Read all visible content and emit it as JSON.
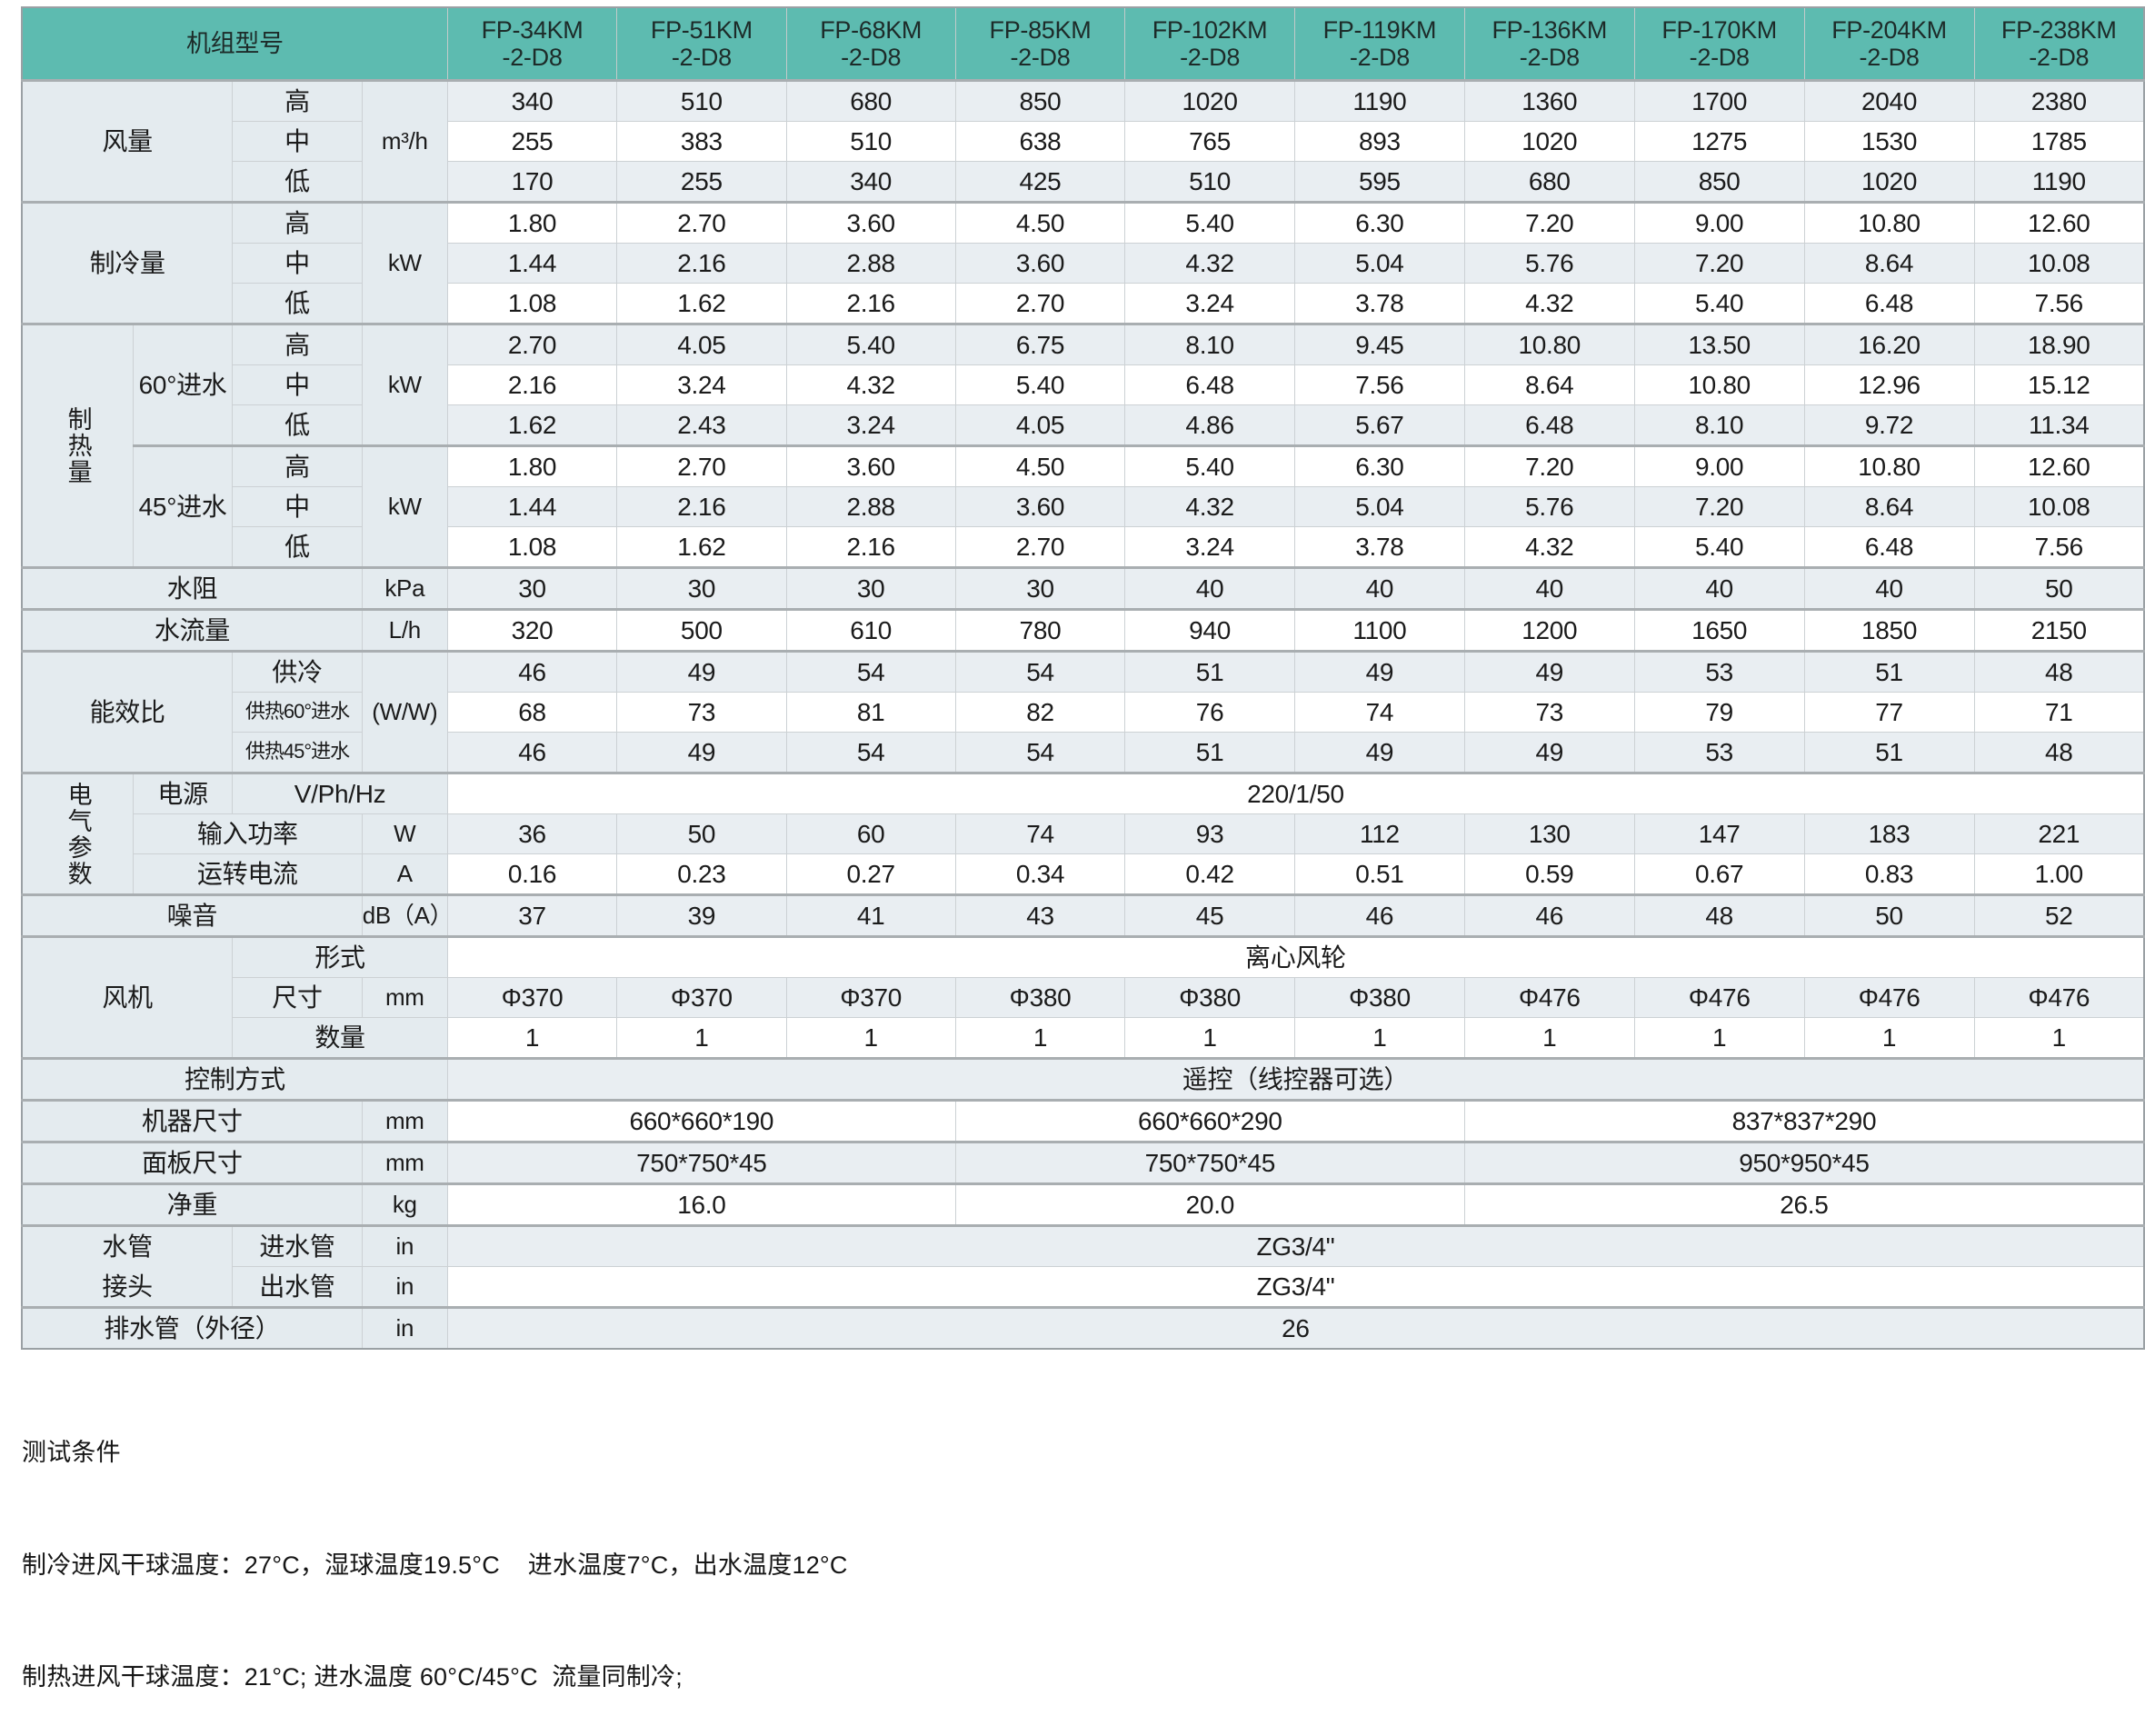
{
  "colors": {
    "header_teal": "#5dbbb0",
    "row_light": "#e9eef2",
    "row_white": "#ffffff",
    "label_bg": "#e4ebef",
    "border": "#ccd1d4",
    "section_border": "#a9aeb1",
    "text": "#1b1b1b"
  },
  "table": {
    "rows": [
      [
        {
          "t": "机组型号",
          "cs": 4,
          "c": "h"
        },
        {
          "t": "FP-34KM\n-2-D8",
          "c": "h"
        },
        {
          "t": "FP-51KM\n-2-D8",
          "c": "h"
        },
        {
          "t": "FP-68KM\n-2-D8",
          "c": "h"
        },
        {
          "t": "FP-85KM\n-2-D8",
          "c": "h"
        },
        {
          "t": "FP-102KM\n-2-D8",
          "c": "h"
        },
        {
          "t": "FP-119KM\n-2-D8",
          "c": "h"
        },
        {
          "t": "FP-136KM\n-2-D8",
          "c": "h"
        },
        {
          "t": "FP-170KM\n-2-D8",
          "c": "h"
        },
        {
          "t": "FP-204KM\n-2-D8",
          "c": "h"
        },
        {
          "t": "FP-238KM\n-2-D8",
          "c": "h"
        }
      ],
      [
        {
          "t": "风量",
          "cs": 2,
          "rs": 3,
          "c": "l"
        },
        {
          "t": "高",
          "c": "l"
        },
        {
          "t": "m³/h",
          "rs": 3,
          "c": "u"
        },
        "340",
        "510",
        "680",
        "850",
        "1020",
        "1190",
        "1360",
        "1700",
        "2040",
        "2380"
      ],
      [
        {
          "t": "中",
          "c": "l"
        },
        "255",
        "383",
        "510",
        "638",
        "765",
        "893",
        "1020",
        "1275",
        "1530",
        "1785"
      ],
      [
        {
          "t": "低",
          "c": "l"
        },
        "170",
        "255",
        "340",
        "425",
        "510",
        "595",
        "680",
        "850",
        "1020",
        "1190"
      ],
      [
        {
          "t": "制冷量",
          "cs": 2,
          "rs": 3,
          "c": "l"
        },
        {
          "t": "高",
          "c": "l"
        },
        {
          "t": "kW",
          "rs": 3,
          "c": "u"
        },
        "1.80",
        "2.70",
        "3.60",
        "4.50",
        "5.40",
        "6.30",
        "7.20",
        "9.00",
        "10.80",
        "12.60"
      ],
      [
        {
          "t": "中",
          "c": "l"
        },
        "1.44",
        "2.16",
        "2.88",
        "3.60",
        "4.32",
        "5.04",
        "5.76",
        "7.20",
        "8.64",
        "10.08"
      ],
      [
        {
          "t": "低",
          "c": "l"
        },
        "1.08",
        "1.62",
        "2.16",
        "2.70",
        "3.24",
        "3.78",
        "4.32",
        "5.40",
        "6.48",
        "7.56"
      ],
      [
        {
          "t": "制热量",
          "rs": 6,
          "c": "v"
        },
        {
          "t": "60°进水",
          "rs": 3,
          "c": "l"
        },
        {
          "t": "高",
          "c": "l"
        },
        {
          "t": "kW",
          "rs": 3,
          "c": "u"
        },
        "2.70",
        "4.05",
        "5.40",
        "6.75",
        "8.10",
        "9.45",
        "10.80",
        "13.50",
        "16.20",
        "18.90"
      ],
      [
        {
          "t": "中",
          "c": "l"
        },
        "2.16",
        "3.24",
        "4.32",
        "5.40",
        "6.48",
        "7.56",
        "8.64",
        "10.80",
        "12.96",
        "15.12"
      ],
      [
        {
          "t": "低",
          "c": "l"
        },
        "1.62",
        "2.43",
        "3.24",
        "4.05",
        "4.86",
        "5.67",
        "6.48",
        "8.10",
        "9.72",
        "11.34"
      ],
      [
        {
          "t": "45°进水",
          "rs": 3,
          "c": "l"
        },
        {
          "t": "高",
          "c": "l"
        },
        {
          "t": "kW",
          "rs": 3,
          "c": "u"
        },
        "1.80",
        "2.70",
        "3.60",
        "4.50",
        "5.40",
        "6.30",
        "7.20",
        "9.00",
        "10.80",
        "12.60"
      ],
      [
        {
          "t": "中",
          "c": "l"
        },
        "1.44",
        "2.16",
        "2.88",
        "3.60",
        "4.32",
        "5.04",
        "5.76",
        "7.20",
        "8.64",
        "10.08"
      ],
      [
        {
          "t": "低",
          "c": "l"
        },
        "1.08",
        "1.62",
        "2.16",
        "2.70",
        "3.24",
        "3.78",
        "4.32",
        "5.40",
        "6.48",
        "7.56"
      ],
      [
        {
          "t": "水阻",
          "cs": 3,
          "c": "l"
        },
        {
          "t": "kPa",
          "c": "u"
        },
        "30",
        "30",
        "30",
        "30",
        "40",
        "40",
        "40",
        "40",
        "40",
        "50"
      ],
      [
        {
          "t": "水流量",
          "cs": 3,
          "c": "l"
        },
        {
          "t": "L/h",
          "c": "u"
        },
        "320",
        "500",
        "610",
        "780",
        "940",
        "1100",
        "1200",
        "1650",
        "1850",
        "2150"
      ],
      [
        {
          "t": "能效比",
          "cs": 2,
          "rs": 3,
          "c": "l"
        },
        {
          "t": "供冷",
          "c": "l"
        },
        {
          "t": "(W/W)",
          "rs": 3,
          "c": "u"
        },
        "46",
        "49",
        "54",
        "54",
        "51",
        "49",
        "49",
        "53",
        "51",
        "48"
      ],
      [
        {
          "t": "供热60°进水",
          "c": "s"
        },
        "68",
        "73",
        "81",
        "82",
        "76",
        "74",
        "73",
        "79",
        "77",
        "71"
      ],
      [
        {
          "t": "供热45°进水",
          "c": "s"
        },
        "46",
        "49",
        "54",
        "54",
        "51",
        "49",
        "49",
        "53",
        "51",
        "48"
      ],
      [
        {
          "t": "电气参数",
          "rs": 3,
          "c": "v"
        },
        {
          "t": "电源",
          "c": "l"
        },
        {
          "t": "V/Ph/Hz",
          "cs": 2,
          "c": "l"
        },
        {
          "t": "220/1/50",
          "cs": 10
        }
      ],
      [
        {
          "t": "输入功率",
          "cs": 2,
          "c": "l"
        },
        {
          "t": "W",
          "c": "u"
        },
        "36",
        "50",
        "60",
        "74",
        "93",
        "112",
        "130",
        "147",
        "183",
        "221"
      ],
      [
        {
          "t": "运转电流",
          "cs": 2,
          "c": "l"
        },
        {
          "t": "A",
          "c": "u"
        },
        "0.16",
        "0.23",
        "0.27",
        "0.34",
        "0.42",
        "0.51",
        "0.59",
        "0.67",
        "0.83",
        "1.00"
      ],
      [
        {
          "t": "噪音",
          "cs": 3,
          "c": "l"
        },
        {
          "t": "dB（A）",
          "c": "u"
        },
        "37",
        "39",
        "41",
        "43",
        "45",
        "46",
        "46",
        "48",
        "50",
        "52"
      ],
      [
        {
          "t": "风机",
          "cs": 2,
          "rs": 3,
          "c": "l"
        },
        {
          "t": "形式",
          "cs": 2,
          "c": "l"
        },
        {
          "t": "离心风轮",
          "cs": 10
        }
      ],
      [
        {
          "t": "尺寸",
          "c": "l"
        },
        {
          "t": "mm",
          "c": "u"
        },
        "Φ370",
        "Φ370",
        "Φ370",
        "Φ380",
        "Φ380",
        "Φ380",
        "Φ476",
        "Φ476",
        "Φ476",
        "Φ476"
      ],
      [
        {
          "t": "数量",
          "cs": 2,
          "c": "l"
        },
        "1",
        "1",
        "1",
        "1",
        "1",
        "1",
        "1",
        "1",
        "1",
        "1"
      ],
      [
        {
          "t": "控制方式",
          "cs": 4,
          "c": "l"
        },
        {
          "t": "遥控（线控器可选）",
          "cs": 10
        }
      ],
      [
        {
          "t": "机器尺寸",
          "cs": 3,
          "c": "l"
        },
        {
          "t": "mm",
          "c": "u"
        },
        {
          "t": "660*660*190",
          "cs": 3
        },
        {
          "t": "660*660*290",
          "cs": 3
        },
        {
          "t": "837*837*290",
          "cs": 4
        }
      ],
      [
        {
          "t": "面板尺寸",
          "cs": 3,
          "c": "l"
        },
        {
          "t": "mm",
          "c": "u"
        },
        {
          "t": "750*750*45",
          "cs": 3
        },
        {
          "t": "750*750*45",
          "cs": 3
        },
        {
          "t": "950*950*45",
          "cs": 4
        }
      ],
      [
        {
          "t": "净重",
          "cs": 3,
          "c": "l"
        },
        {
          "t": "kg",
          "c": "u"
        },
        {
          "t": "16.0",
          "cs": 3
        },
        {
          "t": "20.0",
          "cs": 3
        },
        {
          "t": "26.5",
          "cs": 4
        }
      ],
      [
        {
          "t": "水管\n接头",
          "cs": 2,
          "rs": 2,
          "c": "p"
        },
        {
          "t": "进水管",
          "c": "l"
        },
        {
          "t": "in",
          "c": "u"
        },
        {
          "t": "ZG3/4\"",
          "cs": 10
        }
      ],
      [
        {
          "t": "出水管",
          "c": "l"
        },
        {
          "t": "in",
          "c": "u"
        },
        {
          "t": "ZG3/4\"",
          "cs": 10
        }
      ],
      [
        {
          "t": "排水管（外径）",
          "cs": 3,
          "c": "l"
        },
        {
          "t": "in",
          "c": "u"
        },
        {
          "t": "26",
          "cs": 10
        }
      ]
    ]
  },
  "notes": {
    "title": "测试条件",
    "cooling_condition": "制冷进风干球温度：27°C，湿球温度19.5°C    进水温度7°C，出水温度12°C",
    "heating_condition": "制热进风干球温度：21°C; 进水温度 60°C/45°C  流量同制冷;"
  }
}
